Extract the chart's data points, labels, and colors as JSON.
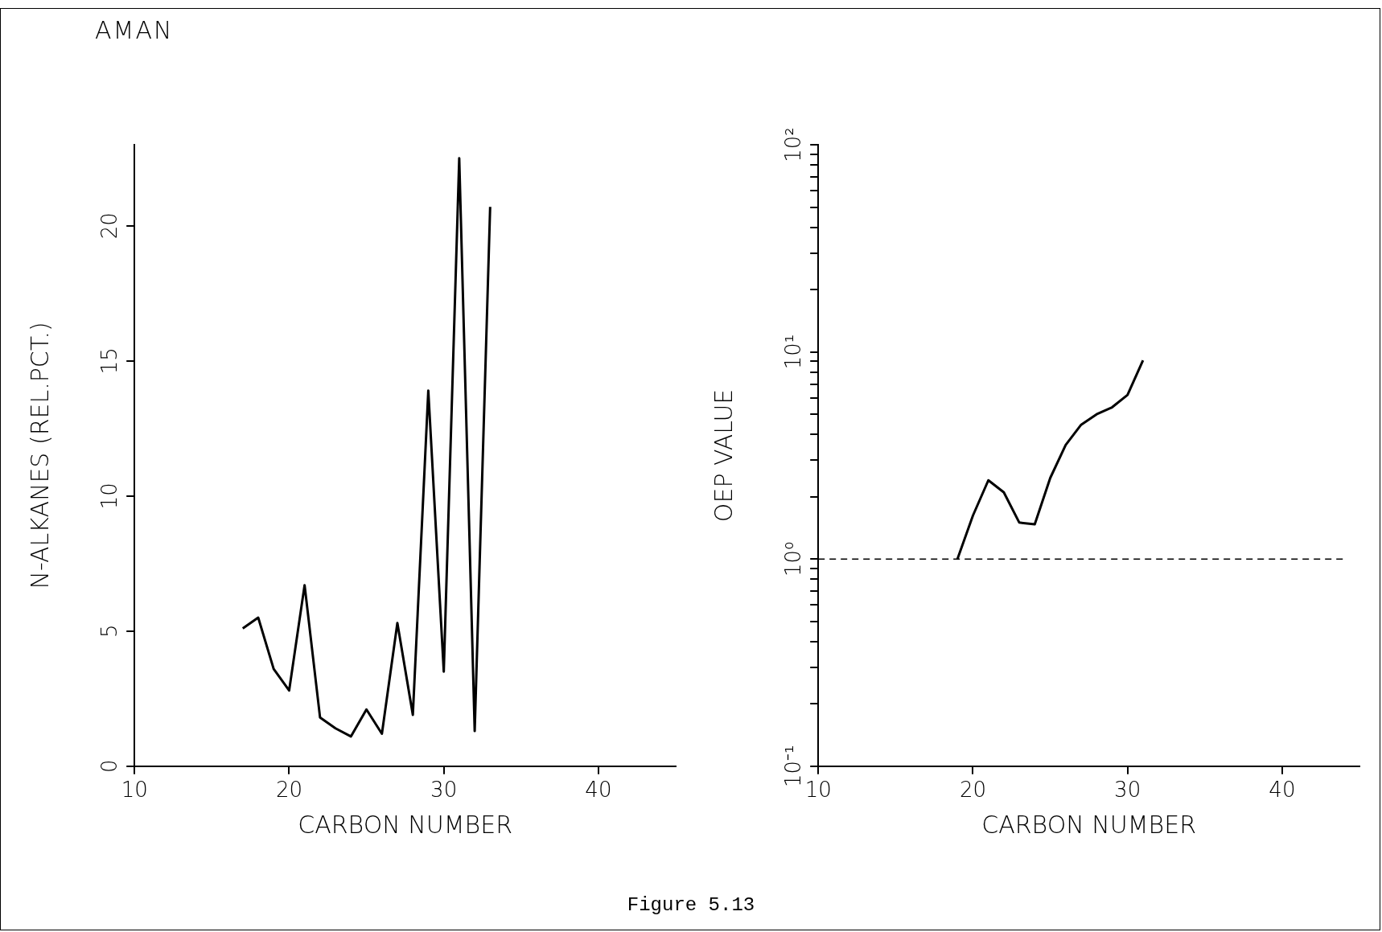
{
  "chart_data": [
    {
      "type": "line",
      "title": "AMAN",
      "xlabel": "CARBON NUMBER",
      "ylabel": "N-ALKANES (REL.PCT.)",
      "x": [
        17,
        18,
        19,
        20,
        21,
        22,
        23,
        24,
        25,
        26,
        27,
        28,
        29,
        30,
        31,
        32,
        33
      ],
      "series": [
        {
          "color": "#000000",
          "values": [
            5.1,
            5.5,
            3.6,
            2.8,
            6.7,
            1.8,
            1.4,
            1.1,
            2.1,
            1.2,
            5.3,
            1.9,
            13.9,
            3.5,
            22.5,
            1.3,
            20.7
          ]
        }
      ],
      "xlim": [
        10,
        45
      ],
      "xticks": [
        10,
        20,
        30,
        40
      ],
      "ylim": [
        0,
        23
      ],
      "yticks": [
        0,
        5,
        10,
        15,
        20
      ],
      "grid": false,
      "legend": false,
      "marker": "none",
      "annotations": [
        "Figure 5.13"
      ]
    },
    {
      "type": "line",
      "xlabel": "CARBON NUMBER",
      "ylabel": "OEP VALUE",
      "x": [
        19,
        20,
        21,
        22,
        23,
        24,
        25,
        26,
        27,
        28,
        29,
        30,
        31
      ],
      "series": [
        {
          "color": "#000000",
          "values": [
            1.0,
            1.62,
            2.4,
            2.1,
            1.5,
            1.47,
            2.46,
            3.55,
            4.45,
            5.0,
            5.4,
            6.2,
            9.1
          ]
        }
      ],
      "xlim": [
        10,
        45
      ],
      "xticks": [
        10,
        20,
        30,
        40
      ],
      "ylim": [
        0.1,
        100
      ],
      "log": "y",
      "yticks": [
        {
          "value": 0.1,
          "label": "10⁻¹"
        },
        {
          "value": 0.2,
          "label": null
        },
        {
          "value": 0.3,
          "label": null
        },
        {
          "value": 0.4,
          "label": null
        },
        {
          "value": 0.5,
          "label": null
        },
        {
          "value": 0.6,
          "label": null
        },
        {
          "value": 0.7,
          "label": null
        },
        {
          "value": 0.8,
          "label": null
        },
        {
          "value": 0.9,
          "label": null
        },
        {
          "value": 1,
          "label": "10⁰"
        },
        {
          "value": 2,
          "label": null
        },
        {
          "value": 3,
          "label": null
        },
        {
          "value": 4,
          "label": null
        },
        {
          "value": 5,
          "label": null
        },
        {
          "value": 6,
          "label": null
        },
        {
          "value": 7,
          "label": null
        },
        {
          "value": 8,
          "label": null
        },
        {
          "value": 9,
          "label": null
        },
        {
          "value": 10,
          "label": "10¹"
        },
        {
          "value": 20,
          "label": null
        },
        {
          "value": 30,
          "label": null
        },
        {
          "value": 40,
          "label": null
        },
        {
          "value": 50,
          "label": null
        },
        {
          "value": 60,
          "label": null
        },
        {
          "value": 70,
          "label": null
        },
        {
          "value": 80,
          "label": null
        },
        {
          "value": 90,
          "label": null
        },
        {
          "value": 100,
          "label": "10²"
        }
      ],
      "ref_lines": [
        {
          "axis": "y",
          "value": 1,
          "line_style": "dashed",
          "color": "#000000"
        }
      ],
      "grid": false,
      "legend": false,
      "marker": "none"
    }
  ]
}
